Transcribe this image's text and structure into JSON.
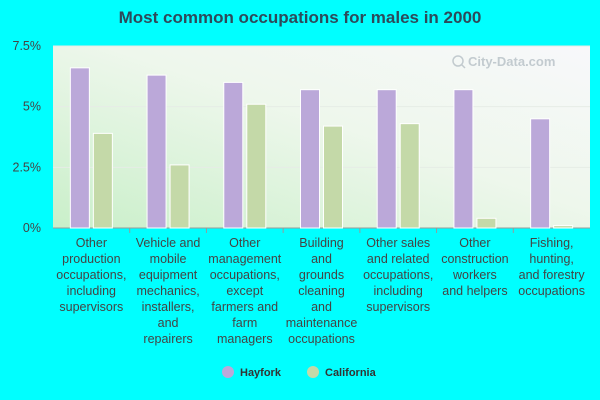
{
  "chart_data": {
    "type": "bar",
    "title": "Most common occupations for males in 2000",
    "xlabel": "",
    "ylabel": "",
    "ylim": [
      0,
      7.5
    ],
    "yticks": [
      {
        "value": 0,
        "label": "0%"
      },
      {
        "value": 2.5,
        "label": "2.5%"
      },
      {
        "value": 5,
        "label": "5%"
      },
      {
        "value": 7.5,
        "label": "7.5%"
      }
    ],
    "categories": [
      "Other production occupations, including supervisors",
      "Vehicle and mobile equipment mechanics, installers, and repairers",
      "Other management occupations, except farmers and farm managers",
      "Building and grounds cleaning and maintenance occupations",
      "Other sales and related occupations, including supervisors",
      "Other construction workers and helpers",
      "Fishing, hunting, and forestry occupations"
    ],
    "category_lines": [
      [
        "Other",
        "production",
        "occupations,",
        "including",
        "supervisors"
      ],
      [
        "Vehicle and",
        "mobile",
        "equipment",
        "mechanics,",
        "installers,",
        "and",
        "repairers"
      ],
      [
        "Other",
        "management",
        "occupations,",
        "except",
        "farmers and",
        "farm",
        "managers"
      ],
      [
        "Building",
        "and",
        "grounds",
        "cleaning",
        "and",
        "maintenance",
        "occupations"
      ],
      [
        "Other sales",
        "and related",
        "occupations,",
        "including",
        "supervisors"
      ],
      [
        "Other",
        "construction",
        "workers",
        "and helpers"
      ],
      [
        "Fishing,",
        "hunting,",
        "and forestry",
        "occupations"
      ]
    ],
    "series": [
      {
        "name": "Hayfork",
        "color": "#bba8d9",
        "values": [
          6.6,
          6.3,
          6.0,
          5.7,
          5.7,
          5.7,
          4.5
        ]
      },
      {
        "name": "California",
        "color": "#c4d9a8",
        "values": [
          3.9,
          2.6,
          5.1,
          4.2,
          4.3,
          0.4,
          0.1
        ]
      }
    ],
    "legend_position": "bottom",
    "grid": true,
    "watermark": "City-Data.com"
  }
}
